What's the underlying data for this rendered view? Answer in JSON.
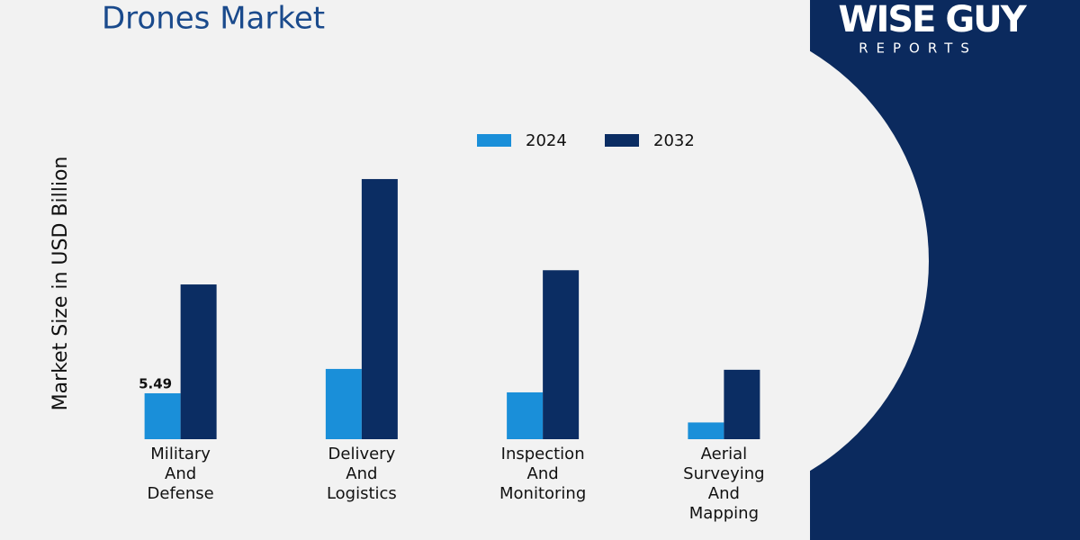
{
  "chart_data": {
    "type": "bar",
    "title": "Drones Market",
    "y_label": "Market Size in USD Billion",
    "categories": [
      "Military And Defense",
      "Delivery And Logistics",
      "Inspection And Monitoring",
      "Aerial Surveying And Mapping"
    ],
    "series": [
      {
        "name": "2024",
        "color": "#1a8fd9",
        "values": [
          5.49,
          8.4,
          5.6,
          2.0
        ],
        "value_labels": [
          "5.49",
          null,
          null,
          null
        ]
      },
      {
        "name": "2032",
        "color": "#0b2d63",
        "values": [
          18.5,
          31.1,
          20.2,
          8.3
        ]
      }
    ],
    "ylim": [
      0,
      34
    ],
    "grid": false,
    "legend": "top"
  },
  "logo": {
    "name": "WISE GUY",
    "sub": "REPORTS"
  }
}
